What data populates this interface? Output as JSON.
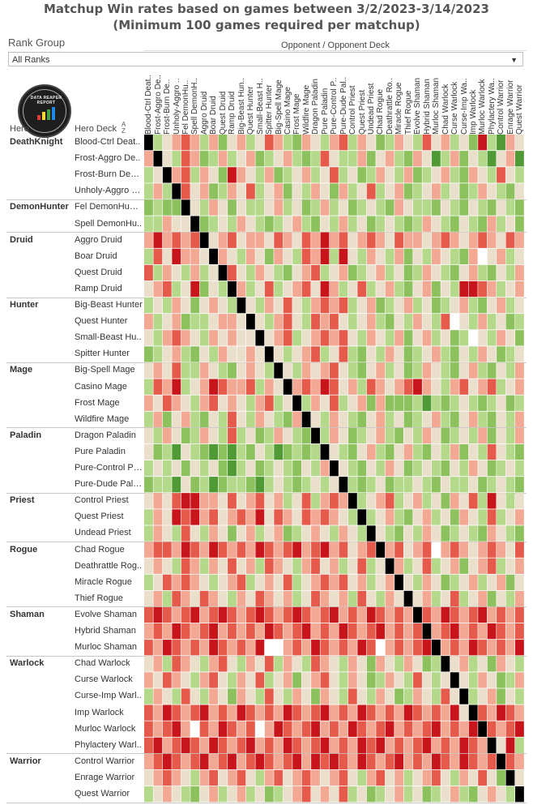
{
  "title": {
    "line1": "Matchup Win rates based on games between 3/2/2023-3/14/2023",
    "line2": "(Minimum 100 games required per matchup)"
  },
  "filter": {
    "label": "Rank Group",
    "value": "All Ranks",
    "icon": "chevron-down-icon"
  },
  "axis": {
    "opponent_header": "Opponent / Opponent Deck",
    "hero_header": "Hero",
    "deck_header": "Hero Deck",
    "sort_icon": "sort-az-icon"
  },
  "logo_text": "DATA REAPER REPORT",
  "colors": {
    "strong_loss": "#c8151b",
    "loss": "#e55a4a",
    "slight_loss": "#f3a893",
    "even": "#eadfca",
    "slight_win": "#b4d98a",
    "win": "#8cc15e",
    "strong_win": "#4f9a34",
    "mirror": "#000000",
    "no_data": "#ffffff"
  },
  "column_labels": [
    "Blood-Ctrl Deat..",
    "Frost-Aggro De..",
    "Frost-Burn De..",
    "Unholy-Aggro ..",
    "Fel DemonHu..",
    "Spell DemonH..",
    "Aggro Druid",
    "Boar Druid",
    "Quest Druid",
    "Ramp Druid",
    "Big-Beast Hun..",
    "Quest Hunter",
    "Small-Beast H..",
    "Spitter Hunter",
    "Big-Spell Mage",
    "Casino Mage",
    "Frost Mage",
    "Wildfire Mage",
    "Dragon Paladin",
    "Pure Paladin",
    "Pure-Control P..",
    "Pure-Dude Pal..",
    "Control Priest",
    "Quest Priest",
    "Undead Priest",
    "Chad Rogue",
    "Deathrattle Ro..",
    "Miracle Rogue",
    "Thief Rogue",
    "Evolve Shaman",
    "Hybrid Shaman",
    "Murloc Shaman",
    "Chad Warlock",
    "Curse Warlock",
    "Curse-Imp Wa..",
    "Imp Warlock",
    "Murloc Warlock",
    "Phylactery Wa..",
    "Control Warrior",
    "Enrage Warrior",
    "Quest Warrior"
  ],
  "chart_data": {
    "type": "heatmap",
    "title": "Matchup Win rates based on games between 3/2/2023-3/14/2023",
    "subtitle": "(Minimum 100 games required per matchup)",
    "xlabel": "Opponent / Opponent Deck",
    "ylabel": "Hero / Hero Deck",
    "scale_note": "cell value = color level: -3 strong loss … 0 even … +3 strong win; M = mirror (black); N = no data (white)",
    "groups": [
      {
        "hero": "DeathKnight",
        "decks": [
          "Blood-Ctrl Deat..",
          "Frost-Aggro De..",
          "Frost-Burn Deat..",
          "Unholy-Aggro D.."
        ]
      },
      {
        "hero": "DemonHunter",
        "decks": [
          "Fel DemonHunter",
          "Spell DemonHu.."
        ]
      },
      {
        "hero": "Druid",
        "decks": [
          "Aggro Druid",
          "Boar Druid",
          "Quest Druid",
          "Ramp Druid"
        ]
      },
      {
        "hero": "Hunter",
        "decks": [
          "Big-Beast Hunter",
          "Quest Hunter",
          "Small-Beast Hu..",
          "Spitter Hunter"
        ]
      },
      {
        "hero": "Mage",
        "decks": [
          "Big-Spell Mage",
          "Casino Mage",
          "Frost Mage",
          "Wildfire Mage"
        ]
      },
      {
        "hero": "Paladin",
        "decks": [
          "Dragon Paladin",
          "Pure Paladin",
          "Pure-Control Pa..",
          "Pure-Dude Pala.."
        ]
      },
      {
        "hero": "Priest",
        "decks": [
          "Control Priest",
          "Quest Priest",
          "Undead Priest"
        ]
      },
      {
        "hero": "Rogue",
        "decks": [
          "Chad Rogue",
          "Deathrattle Rog..",
          "Miracle Rogue",
          "Thief Rogue"
        ]
      },
      {
        "hero": "Shaman",
        "decks": [
          "Evolve Shaman",
          "Hybrid Shaman",
          "Murloc Shaman"
        ]
      },
      {
        "hero": "Warlock",
        "decks": [
          "Chad Warlock",
          "Curse Warlock",
          "Curse-Imp Warl..",
          "Imp Warlock",
          "Murloc Warlock",
          "Phylactery Warl.."
        ]
      },
      {
        "hero": "Warrior",
        "decks": [
          "Control Warrior",
          "Enrage Warrior",
          "Quest Warrior"
        ]
      }
    ],
    "rows": [
      "M 1 0 -1 -2 -1 1 -1 2 0 -1 1 0 -2 -1 1 2 -1 0 1 -1 -2 1 -1 0 2 1 -1 0 1 -2 0 -1 1 0 2 -3 1 3 -1 0",
      "-1 M 0 1 -2 -1 2 1 -1 1 0 -1 2 1 0 -1 1 2 1 -2 0 1 1 -1 2 0 -1 1 2 -1 0 3 1 -1 2 0 1 3 0 -1 3",
      "1 0 M -1 -2 1 -1 0 2 -3 -1 0 1 -1 2 1 0 -1 1 0 -2 1 0 2 1 -1 0 1 -1 2 1 0 -1 1 2 -1 0 1 -2 0 1",
      "1 -1 1 M -2 0 -1 2 1 -1 0 -2 1 0 -1 2 0 1 -1 0 2 -1 1 0 -2 1 0 -1 2 1 0 -1 1 0 2 1 -1 0 1 2 0",
      "2 1 2 2 M 0 1 -1 0 2 0 1 1 0 -1 1 0 2 1 -1 1 0 2 1 0 1 2 -1 0 1 1 2 0 1 2 0 1 2 0 1 2",
      "1 1 -1 0 0 M 2 1 0 1 -1 0 1 2 1 0 -1 1 2 0 1 -1 1 0 2 1 0 1 2 1 -1 0 1 2 0 1 2 -1 1 0 2",
      "-1 -3 -1 -2 -1 -2 M 0 -1 -2 0 -1 -1 0 -2 -1 0 -2 -1 -3 -1 -2 0 -1 -2 -1 0 -2 -1 -1 0 -1 -2 -1 0 -1 -2 -1 0 -2 -1",
      "1 -2 0 -3 -1 -1 0 M -1 0 1 -1 0 2 -1 0 1 -2 -1 -3 1 -3 0 1 -1 0 1 -1 2 0 1 -1 0 1 2 -1 N 0 -1 1 0",
      "-2 1 -1 0 1 -1 1 0 M -2 0 1 -1 0 1 2 0 -1 -2 1 0 -1 2 1 0 -1 1 0 2 1 -1 0 1 2 0 -1 1 2 0 1 -1",
      "0 -1 -2 1 0 -3 2 0 1 M -1 1 0 -2 1 0 -1 -2 0 -3 -1 1 0 -2 1 0 -1 1 2 0 -1 2 0 1 -3 -3 -2 -1 1 0 -1",
      "1 0 1 -1 0 2 0 -1 0 1 M 0 1 -1 0 -2 0 1 -1 -2 -1 -2 1 0 -1 2 1 0 -1 1 0 2 1 0 -1 1 2 0 -1 1 0",
      "-1 1 0 -1 2 1 1 0 -1 -1 0 M 0 1 -1 -2 0 1 -2 -1 -2 0 1 0 -1 1 2 0 1 -1 0 1 -2 N 0 1 -1 1 0 2 1",
      "0 1 -1 -2 -1 0 1 -1 0 -1 0 0 M 0 -1 -2 1 0 -1 -2 -1 -2 0 1 -1 0 1 -1 2 0 -1 1 0 2 1 N 0 1 -1 0 2",
      "2 1 0 -1 1 2 0 1 -1 0 0 -1 0 M 0 1 0 -1 -2 1 0 -2 1 2 0 1 -1 0 2 1 0 -1 1 2 0 1 -1 0 2 1 0",
      "0 -1 0 -2 1 1 -1 0 1 2 0 -1 0 1 M 0 1 -1 0 -1 -2 0 1 2 0 -1 1 0 2 1 -1 0 1 2 0 -1 1 2 0 1 -1",
      "1 -2 -1 -3 1 0 -1 -3 -2 -1 -1 -2 1 -1 0 M -1 -2 -1 -3 -2 0 -1 1 -2 -1 0 -1 -2 -3 -1 0 1 -1 -2 0 -1 -2 1 0 -1",
      "-1 0 -2 -1 0 1 -1 -2 0 -1 0 1 -1 -2 1 0 M 1 -1 0 -2 1 0 -1 2 -1 2 2 2 1 3 1 2 1 0 1 2 1 0 2 1",
      "1 -1 2 0 -1 1 2 0 1 -2 0 1 -1 0 1 2 -1 M 0 1 -1 0 1 2 0 -1 1 0 2 1 0 -1 1 2 0 -1 1 2 0 1 -1",
      "0 1 -1 0 2 1 -1 0 1 -2 1 0 2 1 -1 0 1 2 M 1 -1 0 2 1 0 -1 1 2 0 1 -1 0 2 1 0 1 -1 2 0 1 -1",
      "0 2 1 3 0 1 2 3 2 3 1 2 0 1 3 2 1 2 1 M 0 1 2 0 -1 1 2 0 -1 1 2 0 1 -1 2 0 1 -2 0 1 2",
      "1 0 1 0 2 0 1 0 2 3 1 0 2 1 0 1 2 0 1 -1 M 0 1 2 0 1 -1 0 2 1 0 1 2 0 1 -1 0 2 1 0 1",
      "2 1 1 3 0 2 1 3 2 1 1 2 3 1 0 1 2 1 0 1 0 M 1 2 1 0 2 1 1 0 1 2 0 1 1 0 2 1 0 1 2",
      "0 -1 0 -2 -3 -3 -1 -1 0 -2 0 -1 -2 0 -1 1 0 -2 1 -1 -2 -1 M 1 0 -1 -2 1 0 -1 1 0 2 -1 0 -2 1 -3 0 1 0",
      "1 -1 0 -3 -2 -3 -1 -2 0 -1 -2 -1 -3 0 -2 -1 0 -2 -1 -2 -1 0 1 M 1 0 -1 1 2 0 -1 1 0 2 -1 0 1 -2 1 0 -1",
      "1 -1 0 1 -2 0 1 -1 0 2 0 -1 1 0 -1 2 1 0 -1 0 1 -1 0 1 M 0 1 2 0 1 -1 0 2 1 0 1 2 -1 0 1 2",
      "-1 -2 -2 -1 -3 -2 -1 -3 -2 -1 -2 -1 -3 -2 -1 -2 -3 -1 -2 -3 -1 -2 0 -1 -2 M -1 -2 0 -1 -2 N -1 -2 -1 0 -1 -2 -1 0 -2",
      "0 -1 0 1 -2 -1 1 -1 0 -2 0 -1 1 -2 -1 0 1 -1 -2 0 -1 1 0 -2 1 0 M -1 1 0 -2 1 0 -1 2 0 -1 -2 1 0 -1",
      "1 0 -2 -1 -2 -1 0 1 0 -1 -2 1 0 -1 0 -2 1 0 -1 -2 -1 -2 0 -1 1 0 -1 M 0 1 -1 0 2 1 0 -1 1 0 -1 2 0",
      "0 -1 1 -2 -1 0 -2 -1 0 1 -1 0 -2 -1 0 -1 1 0 -2 -1 0 -1 1 -2 0 1 -1 0 M 0 -1 1 0 -2 1 0 -1 2 0 1 -1",
      "-2 -3 -2 -1 -2 -3 -1 -2 -3 -2 -1 -2 -3 -2 -1 -2 -3 -2 -1 -2 -3 -1 -2 -1 -3 -2 -1 -2 -1 M -2 -1 -3 -2 -1 -2 -3 -1 -2 -1 -2",
      "-1 -2 -1 -3 -2 -1 -2 -3 -1 -2 -1 -2 -1 -3 -2 -1 -2 -3 -1 -2 -1 -3 -2 -1 -2 -3 -1 -2 -1 -2 M -1 -2 -3 -1 -2 -1 -3 -2 -1 -2",
      "-2 -1 -3 -2 -1 -2 -1 -3 -2 -1 -2 -1 -3 N N -1 -2 -1 -3 -2 -1 -2 -1 -3 -2 N -1 -2 -1 -2 -3 M -1 -2 -1 -3 -2 -1 -2 -1 -3",
      "0 -1 1 -2 -1 0 1 -1 -2 0 1 -1 0 -2 1 -1 0 1 -2 -1 0 1 -1 0 2 -1 0 1 -1 0 2 1 M 0 -1 1 0 2 -1 0 1",
      "-1 0 -2 -1 0 1 -1 -2 0 1 -1 0 -2 1 0 -1 2 0 -1 -2 0 1 -1 0 2 1 -1 0 1 -2 0 1 0 M 0 1 -1 0 2 1 -1",
      "1 -1 0 1 -2 0 1 -1 0 2 -1 0 1 -2 0 1 -1 0 2 -1 0 1 -2 0 1 -1 0 2 1 -1 0 1 -2 0 M 1 0 -1 2 0 1",
      "-2 -1 -3 -2 -1 -2 -3 -1 -2 -1 -3 -2 -1 -2 -1 -3 -2 -1 -2 -3 -1 -2 -1 -3 -2 -1 -2 -1 -3 -2 -1 -2 -1 -3 0 M -2 -1 -3 -2 -1",
      "-2 -1 -2 -3 -1 N -2 -1 -3 -2 -1 -2 N -1 -3 -2 -1 -2 -3 -1 -2 -1 -3 -2 -1 -2 -3 -1 -2 -1 -2 -3 -1 -2 -1 -3 M -2 -1 -2 -3",
      "-2 -3 -1 -2 -3 -2 -1 -3 -2 -1 -2 -3 -1 -2 -1 -3 -2 -1 -2 -3 -1 -2 -1 -3 -2 -3 -1 -2 -1 -2 -3 -1 -2 -1 -3 -2 -1 M 0 -3 1",
      "-1 -2 -3 -2 -1 -2 -3 -1 -2 -3 -1 -2 -3 -2 -1 -2 -3 -1 -3 -2 -3 -2 -1 -3 -2 -1 -2 -3 -1 -2 -1 -3 -2 -1 -3 -2 -1 -2 M -2 -1",
      "0 -1 -2 -1 0 1 -1 -2 0 -1 -2 0 1 -1 -2 0 -1 -2 -1 0 -1 -2 0 1 -1 -2 0 -1 1 0 -1 -2 0 1 -1 0 -2 0 2 M 0",
      "1 0 -1 0 1 2 0 -1 1 0 -1 1 0 2 1 0 -1 -2 0 -1 0 -2 1 0 2 1 0 -1 1 0 2 1 0 -1 1 2 0 -1 0 1 M"
    ]
  }
}
